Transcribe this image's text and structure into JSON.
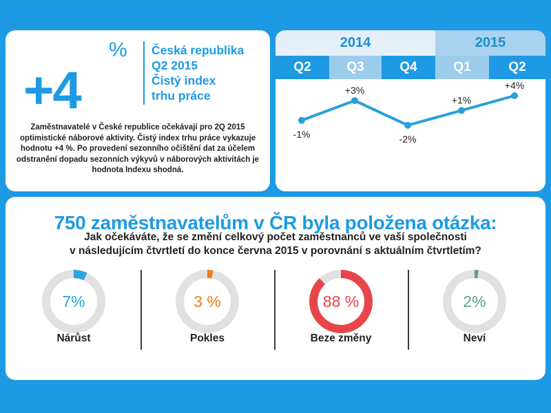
{
  "index_card": {
    "big_value": "+4",
    "big_unit": "%",
    "heading_lines": [
      "Česká republika",
      "Q2 2015",
      "Čistý index",
      "trhu práce"
    ],
    "description": "Zaměstnavatelé v České republice očekávají pro 2Q 2015 optimistické náborové aktivity. Čistý index trhu práce vykazuje hodnotu +4 %. Po provedení sezonního očištění dat za účelem odstranění dopadu sezonních výkyvů v náborových aktivitách je hodnota Indexu shodná."
  },
  "chart_data": [
    {
      "type": "line",
      "years": [
        {
          "label": "2014",
          "quarters": [
            "Q2",
            "Q3",
            "Q4"
          ]
        },
        {
          "label": "2015",
          "quarters": [
            "Q1",
            "Q2"
          ]
        }
      ],
      "categories": [
        "Q2",
        "Q3",
        "Q4",
        "Q1",
        "Q2"
      ],
      "values": [
        -1,
        3,
        -2,
        1,
        4
      ],
      "data_labels": [
        "-1%",
        "+3%",
        "-2%",
        "+1%",
        "+4%"
      ],
      "ylim": [
        -2,
        4
      ],
      "color": "#2a9fd8",
      "grid": false
    },
    {
      "type": "pie",
      "variant": "donut",
      "categories": [
        "Nárůst",
        "Pokles",
        "Beze změny",
        "Neví"
      ],
      "values": [
        7,
        3,
        88,
        2
      ],
      "value_labels": [
        "7%",
        "3 %",
        "88 %",
        "2%"
      ],
      "colors": [
        "#2aa3e0",
        "#f07c1a",
        "#e8454a",
        "#5ca387"
      ],
      "track_color": "#e1e1e1"
    }
  ],
  "survey": {
    "title": "750 zaměstnavatelům v ČR byla položena otázka:",
    "question_line1": "Jak očekáváte, že se změní celkový počet zaměstnanců ve vaší společnosti",
    "question_line2": "v následujícím čtvrtletí do konce června 2015 v porovnání s aktuálním čtvrtletím?"
  }
}
